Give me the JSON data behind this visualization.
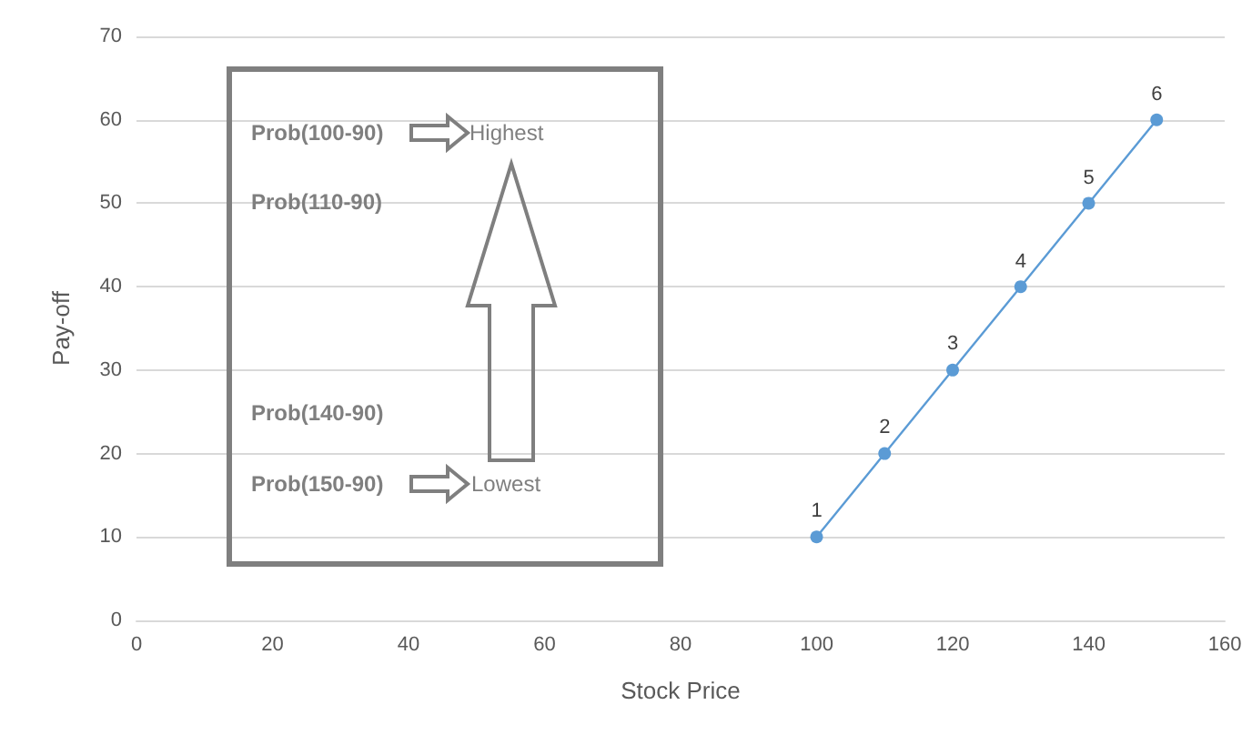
{
  "chart_data": {
    "type": "line",
    "xlabel": "Stock Price",
    "ylabel": "Pay-off",
    "x": [
      100,
      110,
      120,
      130,
      140,
      150
    ],
    "series": [
      {
        "color": "#5b9bd5",
        "values": [
          10,
          20,
          30,
          40,
          50,
          60
        ]
      }
    ],
    "xlim": [
      0,
      160
    ],
    "xticks": [
      0,
      20,
      40,
      60,
      80,
      100,
      120,
      140,
      160
    ],
    "ylim": [
      0,
      70
    ],
    "yticks": [
      0,
      10,
      20,
      30,
      40,
      50,
      60,
      70
    ],
    "grid": "y",
    "marker": "circle",
    "line_style": "solid",
    "annotations": [
      "Prob(100-90)",
      "Highest",
      "Prob(110-90)",
      "Prob(140-90)",
      "Prob(150-90)",
      "Lowest",
      {
        "text": "1",
        "x": 100,
        "y": 10
      },
      {
        "text": "2",
        "x": 110,
        "y": 20
      },
      {
        "text": "3",
        "x": 120,
        "y": 30
      },
      {
        "text": "4",
        "x": 130,
        "y": 40
      },
      {
        "text": "5",
        "x": 140,
        "y": 50
      },
      {
        "text": "6",
        "x": 150,
        "y": 60
      }
    ]
  }
}
